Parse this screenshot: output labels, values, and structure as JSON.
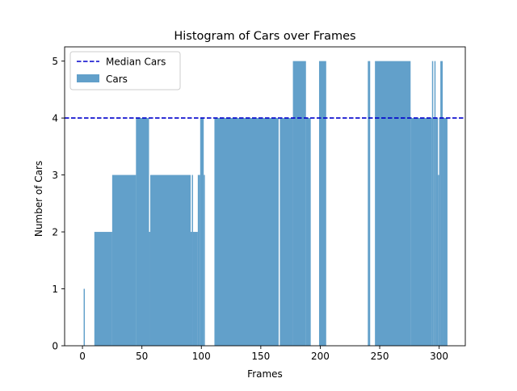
{
  "chart_data": {
    "type": "bar",
    "title": "Histogram of Cars over Frames",
    "xlabel": "Frames",
    "ylabel": "Number of Cars",
    "xlim": [
      -15,
      322
    ],
    "ylim": [
      0,
      5.25
    ],
    "xticks": [
      0,
      50,
      100,
      150,
      200,
      250,
      300
    ],
    "yticks": [
      0,
      1,
      2,
      3,
      4,
      5
    ],
    "grid": false,
    "legend_position": "upper-left",
    "median_line": {
      "label": "Median Cars",
      "value": 4,
      "color": "#0000cc",
      "style": "dashed"
    },
    "series": [
      {
        "name": "Cars",
        "color": "#1f77b4",
        "alpha": 0.7,
        "bins": [
          {
            "x0": 1,
            "x1": 2,
            "v": 1
          },
          {
            "x0": 10,
            "x1": 25,
            "v": 2
          },
          {
            "x0": 25,
            "x1": 45,
            "v": 3
          },
          {
            "x0": 45,
            "x1": 56,
            "v": 4
          },
          {
            "x0": 56,
            "x1": 57,
            "v": 2
          },
          {
            "x0": 57,
            "x1": 91,
            "v": 3
          },
          {
            "x0": 91,
            "x1": 92,
            "v": 2
          },
          {
            "x0": 92,
            "x1": 93,
            "v": 3
          },
          {
            "x0": 93,
            "x1": 97,
            "v": 2
          },
          {
            "x0": 97,
            "x1": 99,
            "v": 3
          },
          {
            "x0": 99,
            "x1": 102,
            "v": 4
          },
          {
            "x0": 102,
            "x1": 103,
            "v": 3
          },
          {
            "x0": 111,
            "x1": 165,
            "v": 4
          },
          {
            "x0": 166,
            "x1": 177,
            "v": 4
          },
          {
            "x0": 177,
            "x1": 188,
            "v": 5
          },
          {
            "x0": 188,
            "x1": 192,
            "v": 4
          },
          {
            "x0": 199,
            "x1": 205,
            "v": 5
          },
          {
            "x0": 240,
            "x1": 242,
            "v": 5
          },
          {
            "x0": 246,
            "x1": 276,
            "v": 5
          },
          {
            "x0": 276,
            "x1": 294,
            "v": 4
          },
          {
            "x0": 294,
            "x1": 295,
            "v": 5
          },
          {
            "x0": 295,
            "x1": 296,
            "v": 4
          },
          {
            "x0": 296,
            "x1": 297,
            "v": 5
          },
          {
            "x0": 297,
            "x1": 299,
            "v": 4
          },
          {
            "x0": 299,
            "x1": 300,
            "v": 3
          },
          {
            "x0": 300,
            "x1": 301,
            "v": 4
          },
          {
            "x0": 301,
            "x1": 303,
            "v": 5
          },
          {
            "x0": 303,
            "x1": 307,
            "v": 4
          }
        ]
      }
    ]
  }
}
